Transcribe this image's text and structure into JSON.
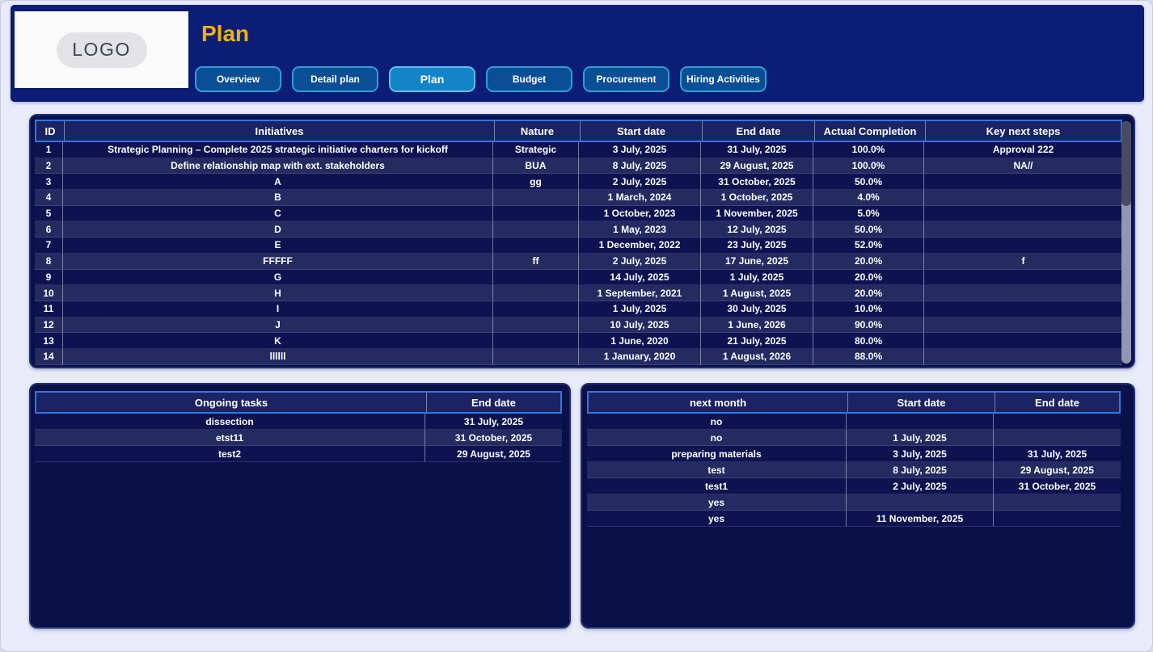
{
  "header": {
    "logo_text": "LOGO",
    "title": "Plan",
    "tabs": [
      {
        "label": "Overview",
        "active": false
      },
      {
        "label": "Detail plan",
        "active": false
      },
      {
        "label": "Plan",
        "active": true
      },
      {
        "label": "Budget",
        "active": false
      },
      {
        "label": "Procurement",
        "active": false
      },
      {
        "label": "Hiring Activities",
        "active": false
      }
    ]
  },
  "main_table": {
    "columns": [
      "ID",
      "Initiatives",
      "Nature",
      "Start date",
      "End date",
      "Actual Completion",
      "Key next steps"
    ],
    "rows": [
      [
        "1",
        "Strategic Planning – Complete 2025 strategic initiative charters for kickoff",
        "Strategic",
        "3 July, 2025",
        "31 July, 2025",
        "100.0%",
        "Approval 222"
      ],
      [
        "2",
        "Define relationship map with ext. stakeholders",
        "BUA",
        "8 July, 2025",
        "29 August, 2025",
        "100.0%",
        "NA//"
      ],
      [
        "3",
        "A",
        "gg",
        "2 July, 2025",
        "31 October, 2025",
        "50.0%",
        ""
      ],
      [
        "4",
        "B",
        "",
        "1 March, 2024",
        "1 October, 2025",
        "4.0%",
        ""
      ],
      [
        "5",
        "C",
        "",
        "1 October, 2023",
        "1 November, 2025",
        "5.0%",
        ""
      ],
      [
        "6",
        "D",
        "",
        "1 May, 2023",
        "12 July, 2025",
        "50.0%",
        ""
      ],
      [
        "7",
        "E",
        "",
        "1 December, 2022",
        "23 July, 2025",
        "52.0%",
        ""
      ],
      [
        "8",
        "FFFFF",
        "ff",
        "2 July, 2025",
        "17 June, 2025",
        "20.0%",
        "f"
      ],
      [
        "9",
        "G",
        "",
        "14 July, 2025",
        "1 July, 2025",
        "20.0%",
        ""
      ],
      [
        "10",
        "H",
        "",
        "1 September, 2021",
        "1 August, 2025",
        "20.0%",
        ""
      ],
      [
        "11",
        "I",
        "",
        "1 July, 2025",
        "30 July, 2025",
        "10.0%",
        ""
      ],
      [
        "12",
        "J",
        "",
        "10 July, 2025",
        "1 June, 2026",
        "90.0%",
        ""
      ],
      [
        "13",
        "K",
        "",
        "1 June, 2020",
        "21 July, 2025",
        "80.0%",
        ""
      ],
      [
        "14",
        "llllll",
        "",
        "1 January, 2020",
        "1 August, 2026",
        "88.0%",
        ""
      ]
    ]
  },
  "ongoing_tasks_table": {
    "columns": [
      "Ongoing tasks",
      "End date"
    ],
    "rows": [
      [
        "dissection",
        "31 July, 2025"
      ],
      [
        "etst11",
        "31 October, 2025"
      ],
      [
        "test2",
        "29 August, 2025"
      ]
    ]
  },
  "next_month_table": {
    "columns": [
      "next month",
      "Start date",
      "End date"
    ],
    "rows": [
      [
        "no",
        "",
        ""
      ],
      [
        "no",
        "1 July, 2025",
        ""
      ],
      [
        "preparing materials",
        "3 July, 2025",
        "31 July, 2025"
      ],
      [
        "test",
        "8 July, 2025",
        "29 August, 2025"
      ],
      [
        "test1",
        "2 July, 2025",
        "31 October, 2025"
      ],
      [
        "yes",
        "",
        ""
      ],
      [
        "yes",
        "11 November, 2025",
        ""
      ]
    ]
  },
  "colors": {
    "header_band": "#0b1d75",
    "panel_background": "#0a1148",
    "row_alternate": "#242b60",
    "table_header_fill": "#1b2364",
    "table_header_border": "#2b78e4",
    "tab_inactive": "#0a4f96",
    "tab_active": "#1484c9",
    "tab_border": "#2d9fd8",
    "title_gold": "#f2b100",
    "scrollbar_track": "#9096b5",
    "scrollbar_thumb": "#474c63"
  }
}
